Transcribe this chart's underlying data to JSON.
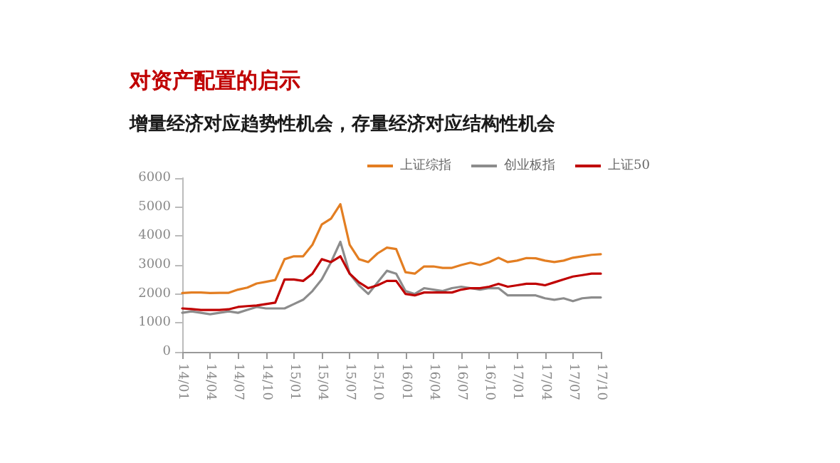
{
  "chart_data": {
    "type": "line",
    "title": "对资产配置的启示",
    "subtitle": "增量经济对应趋势性机会，存量经济对应结构性机会",
    "categories": [
      "14/01",
      null,
      null,
      "14/04",
      null,
      null,
      "14/07",
      null,
      null,
      "14/10",
      null,
      null,
      "15/01",
      null,
      null,
      "15/04",
      null,
      null,
      "15/07",
      null,
      null,
      "15/10",
      null,
      null,
      "16/01",
      null,
      null,
      "16/04",
      null,
      null,
      "16/07",
      null,
      null,
      "16/10",
      null,
      null,
      "17/01",
      null,
      null,
      "17/04",
      null,
      null,
      "17/07",
      null,
      null,
      "17/10"
    ],
    "series": [
      {
        "name": "上证综指",
        "color": "#e37e22",
        "values": [
          2030,
          2050,
          2050,
          2030,
          2040,
          2040,
          2150,
          2220,
          2360,
          2420,
          2480,
          3200,
          3300,
          3300,
          3700,
          4400,
          4600,
          5100,
          3700,
          3200,
          3100,
          3400,
          3600,
          3550,
          2750,
          2700,
          2950,
          2950,
          2900,
          2900,
          3000,
          3080,
          3000,
          3100,
          3250,
          3100,
          3150,
          3240,
          3230,
          3150,
          3100,
          3150,
          3250,
          3300,
          3350,
          3370
        ]
      },
      {
        "name": "创业板指",
        "color": "#8c8c8c",
        "values": [
          1350,
          1400,
          1350,
          1300,
          1350,
          1400,
          1350,
          1450,
          1550,
          1500,
          1500,
          1500,
          1650,
          1800,
          2100,
          2500,
          3100,
          3800,
          2700,
          2300,
          2000,
          2400,
          2800,
          2700,
          2100,
          2000,
          2200,
          2150,
          2100,
          2200,
          2250,
          2200,
          2150,
          2200,
          2200,
          1950,
          1950,
          1950,
          1950,
          1850,
          1800,
          1850,
          1750,
          1850,
          1880,
          1880
        ]
      },
      {
        "name": "上证50",
        "color": "#c00000",
        "values": [
          1500,
          1480,
          1450,
          1450,
          1450,
          1470,
          1550,
          1580,
          1600,
          1650,
          1700,
          2500,
          2500,
          2450,
          2700,
          3200,
          3100,
          3300,
          2700,
          2400,
          2200,
          2300,
          2450,
          2450,
          2000,
          1950,
          2050,
          2050,
          2050,
          2050,
          2150,
          2200,
          2200,
          2250,
          2350,
          2250,
          2300,
          2350,
          2350,
          2300,
          2400,
          2500,
          2600,
          2650,
          2700,
          2700
        ]
      }
    ],
    "ylim": [
      0,
      6000
    ],
    "yticks": [
      0,
      1000,
      2000,
      3000,
      4000,
      5000,
      6000
    ],
    "grid": false,
    "legend": "top",
    "marker": "none",
    "line_style": "solid"
  }
}
